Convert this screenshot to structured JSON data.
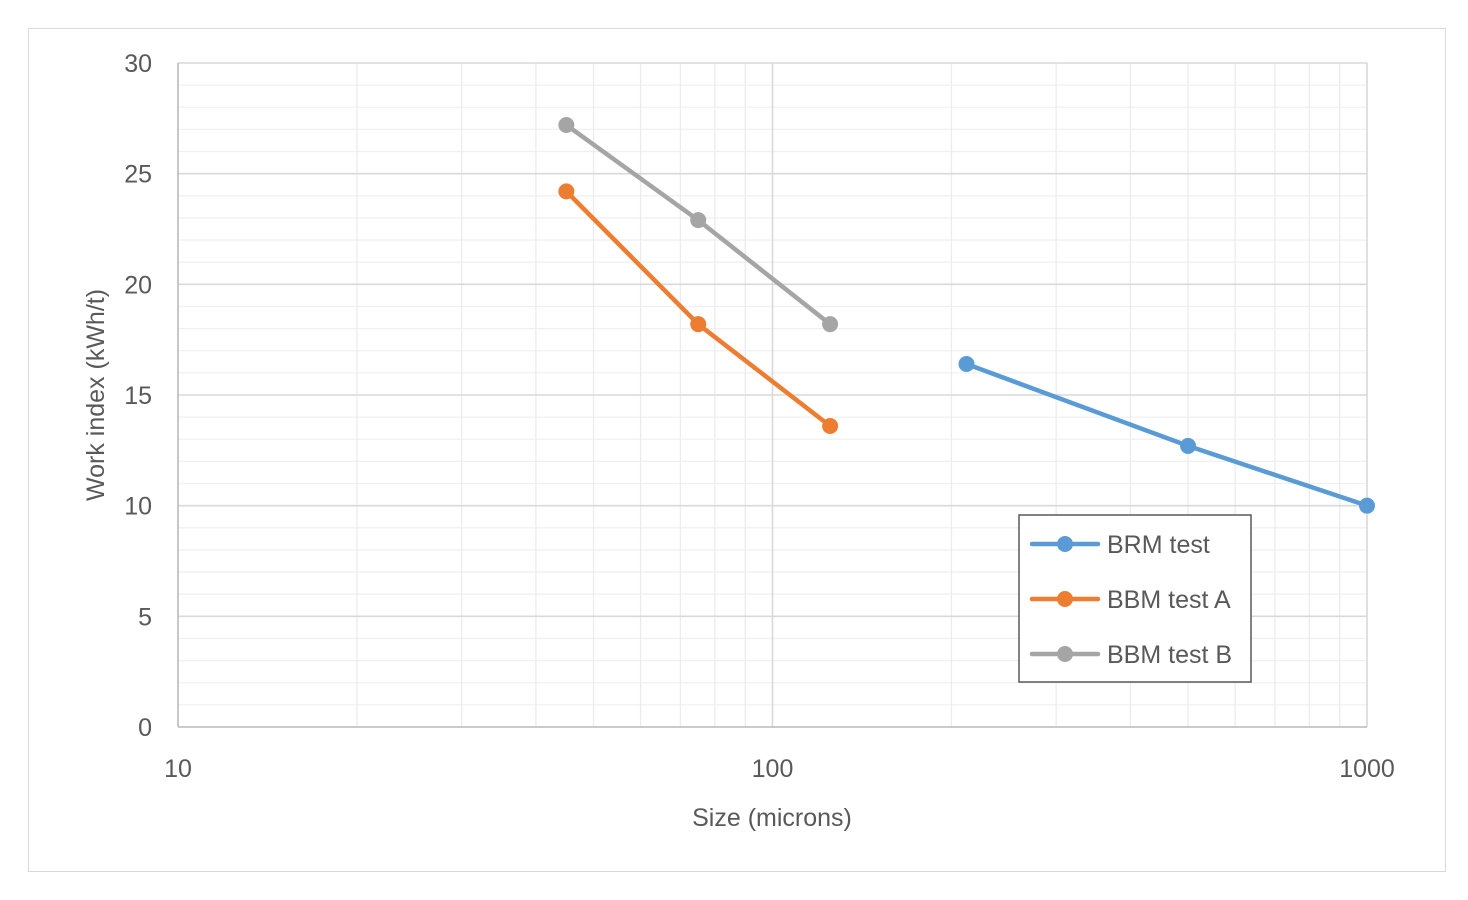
{
  "chart_data": {
    "type": "line",
    "title": "",
    "xlabel": "Size (microns)",
    "ylabel": "Work index (kWh/t)",
    "x_scale": "log",
    "xlim": [
      10,
      1000
    ],
    "ylim": [
      0,
      30
    ],
    "x_ticks": [
      "10",
      "100",
      "1000"
    ],
    "y_ticks": [
      "0",
      "5",
      "10",
      "15",
      "20",
      "25",
      "30"
    ],
    "grid": true,
    "legend_position": "lower-right",
    "series": [
      {
        "name": "BRM test",
        "color": "#5b9bd5",
        "x": [
          212,
          500,
          1000
        ],
        "y": [
          16.4,
          12.7,
          10.0
        ]
      },
      {
        "name": "BBM test A",
        "color": "#ed7d31",
        "x": [
          45,
          75,
          125
        ],
        "y": [
          24.2,
          18.2,
          13.6
        ]
      },
      {
        "name": "BBM test B",
        "color": "#a5a5a5",
        "x": [
          45,
          75,
          125
        ],
        "y": [
          27.2,
          22.9,
          18.2
        ]
      }
    ]
  }
}
